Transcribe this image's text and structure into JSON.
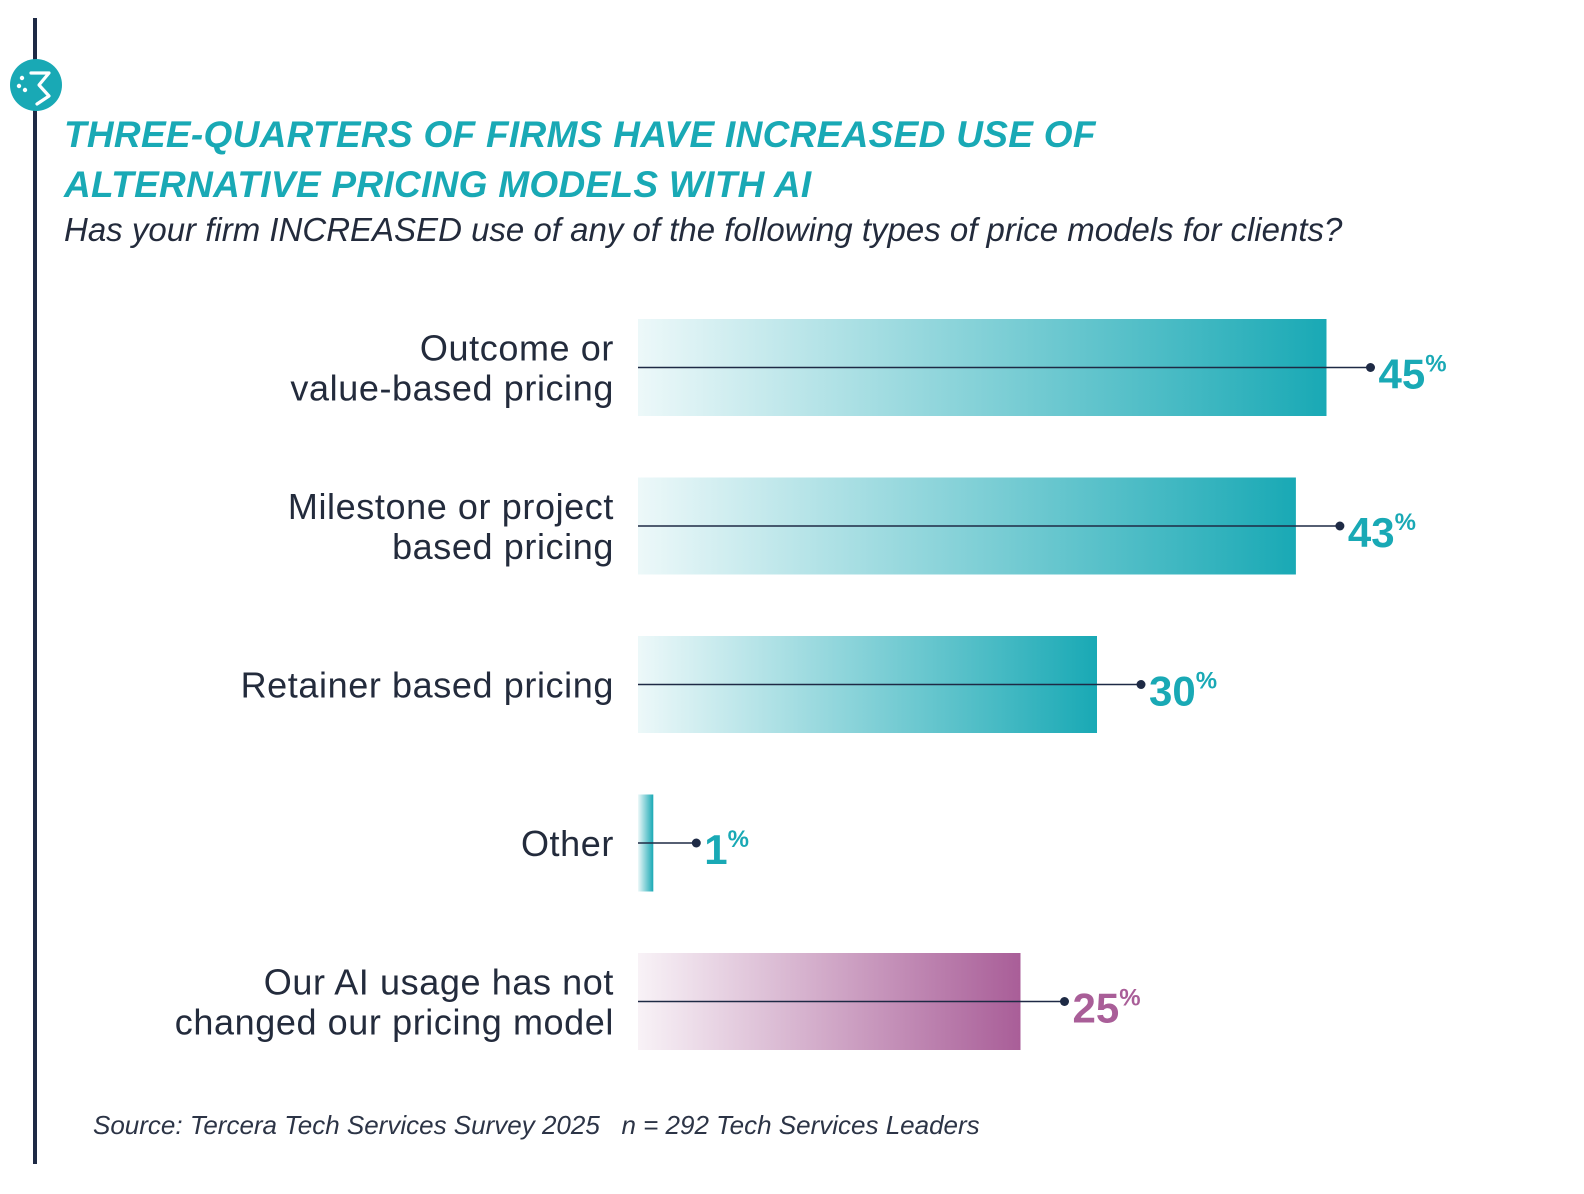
{
  "title_line1": "THREE-QUARTERS OF FIRMS HAVE INCREASED USE OF",
  "title_line2": "ALTERNATIVE PRICING MODELS WITH AI",
  "subtitle": "Has your firm INCREASED use of any of the following types of price models for clients?",
  "source": "Source: Tercera Tech Services Survey 2025",
  "sample": "n = 292 Tech Services Leaders",
  "colors": {
    "accent": "#19a9b5",
    "accent_alt": "#a95e98",
    "text": "#232b3c",
    "line": "#1e2a45"
  },
  "chart_data": {
    "type": "bar",
    "orientation": "horizontal",
    "categories": [
      [
        "Outcome or",
        "value-based pricing"
      ],
      [
        "Milestone or project",
        "based pricing"
      ],
      [
        "Retainer based pricing"
      ],
      [
        "Other"
      ],
      [
        "Our AI usage has not",
        "changed our pricing model"
      ]
    ],
    "values": [
      45,
      43,
      30,
      1,
      25
    ],
    "value_suffix": "%",
    "bar_colors": [
      "#19a9b5",
      "#19a9b5",
      "#19a9b5",
      "#19a9b5",
      "#a95e98"
    ]
  }
}
